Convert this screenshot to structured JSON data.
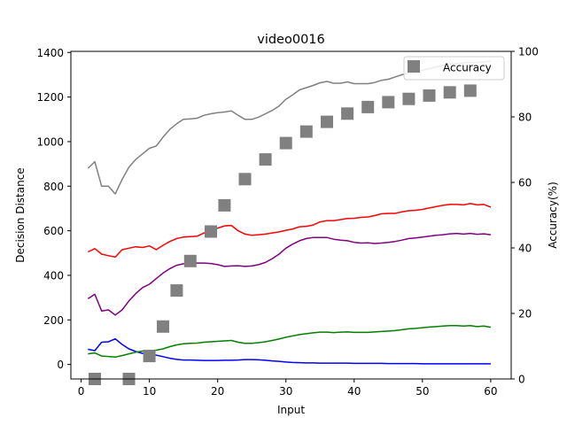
{
  "chart_data": {
    "type": "line",
    "title": "video0016",
    "xlabel": "Input",
    "ylabel": "Decision Distance",
    "y2label": "Accuracy(%)",
    "xlim": [
      -1.5,
      63
    ],
    "ylim": [
      -65,
      1405
    ],
    "y2lim": [
      0,
      100
    ],
    "xticks": [
      0,
      10,
      20,
      30,
      40,
      50,
      60
    ],
    "yticks": [
      0,
      200,
      400,
      600,
      800,
      1000,
      1200,
      1400
    ],
    "y2ticks": [
      0,
      20,
      40,
      60,
      80,
      100
    ],
    "grid": false,
    "legend_placement": "top-right",
    "x": [
      1,
      2,
      3,
      4,
      5,
      6,
      7,
      8,
      9,
      10,
      11,
      12,
      13,
      14,
      15,
      16,
      17,
      18,
      19,
      20,
      21,
      22,
      23,
      24,
      25,
      26,
      27,
      28,
      29,
      30,
      31,
      32,
      33,
      34,
      35,
      36,
      37,
      38,
      39,
      40,
      41,
      42,
      43,
      44,
      45,
      46,
      47,
      48,
      49,
      50,
      51,
      52,
      53,
      54,
      55,
      56,
      57,
      58,
      59,
      60
    ],
    "series": [
      {
        "color": "#808080",
        "values": [
          880,
          910,
          800,
          800,
          765,
          830,
          885,
          920,
          945,
          970,
          980,
          1020,
          1055,
          1080,
          1100,
          1102,
          1105,
          1118,
          1125,
          1130,
          1133,
          1138,
          1118,
          1100,
          1100,
          1110,
          1125,
          1140,
          1160,
          1190,
          1210,
          1232,
          1242,
          1252,
          1264,
          1270,
          1262,
          1262,
          1268,
          1260,
          1260,
          1260,
          1265,
          1275,
          1280,
          1290,
          1300,
          1308,
          1315,
          1320,
          1328,
          1335,
          1342,
          1348,
          1350,
          1352,
          1355,
          1355,
          1358,
          1360
        ]
      },
      {
        "color": "#ff0000",
        "values": [
          505,
          520,
          495,
          488,
          482,
          515,
          522,
          528,
          525,
          532,
          515,
          535,
          552,
          565,
          572,
          574,
          576,
          590,
          598,
          612,
          622,
          624,
          600,
          585,
          580,
          582,
          585,
          590,
          595,
          602,
          608,
          618,
          620,
          626,
          640,
          645,
          645,
          650,
          655,
          656,
          660,
          662,
          668,
          676,
          678,
          678,
          685,
          690,
          692,
          696,
          702,
          708,
          714,
          718,
          718,
          716,
          722,
          716,
          718,
          706
        ]
      },
      {
        "color": "#800080",
        "values": [
          295,
          315,
          240,
          245,
          222,
          245,
          285,
          318,
          345,
          360,
          385,
          410,
          430,
          445,
          452,
          453,
          455,
          455,
          453,
          448,
          440,
          442,
          443,
          440,
          442,
          448,
          458,
          475,
          495,
          522,
          540,
          555,
          565,
          570,
          570,
          570,
          562,
          558,
          555,
          548,
          545,
          546,
          543,
          545,
          548,
          552,
          558,
          565,
          568,
          572,
          576,
          580,
          582,
          586,
          588,
          585,
          588,
          584,
          586,
          582
        ]
      },
      {
        "color": "#0000ff",
        "values": [
          68,
          62,
          100,
          102,
          115,
          90,
          70,
          58,
          50,
          46,
          42,
          35,
          28,
          23,
          20,
          20,
          19,
          18,
          18,
          18,
          19,
          19,
          20,
          22,
          22,
          21,
          19,
          16,
          14,
          11,
          9,
          8,
          7,
          7,
          6,
          6,
          6,
          6,
          6,
          5,
          5,
          5,
          5,
          5,
          4,
          4,
          4,
          4,
          4,
          3,
          3,
          3,
          3,
          3,
          3,
          3,
          3,
          3,
          3,
          3
        ]
      },
      {
        "color": "#008000",
        "values": [
          48,
          52,
          38,
          36,
          33,
          40,
          48,
          55,
          60,
          62,
          64,
          70,
          80,
          88,
          93,
          95,
          96,
          100,
          102,
          104,
          106,
          108,
          100,
          95,
          95,
          98,
          102,
          108,
          114,
          122,
          128,
          134,
          138,
          142,
          145,
          145,
          143,
          145,
          146,
          144,
          144,
          144,
          146,
          148,
          150,
          152,
          156,
          160,
          162,
          165,
          168,
          170,
          172,
          174,
          174,
          172,
          174,
          170,
          172,
          167
        ]
      },
      {
        "name": "Accuracy",
        "color": "#808080",
        "axis": "right",
        "marker": "square",
        "x": [
          2,
          7,
          10,
          12,
          14,
          16,
          19,
          21,
          24,
          27,
          30,
          33,
          36,
          39,
          42,
          45,
          48,
          51,
          54,
          57
        ],
        "values": [
          0,
          0,
          7,
          16,
          27,
          36,
          45,
          53,
          61,
          67,
          72,
          75.5,
          78.5,
          81,
          83,
          84.5,
          85.5,
          86.5,
          87.5,
          88
        ]
      }
    ]
  }
}
